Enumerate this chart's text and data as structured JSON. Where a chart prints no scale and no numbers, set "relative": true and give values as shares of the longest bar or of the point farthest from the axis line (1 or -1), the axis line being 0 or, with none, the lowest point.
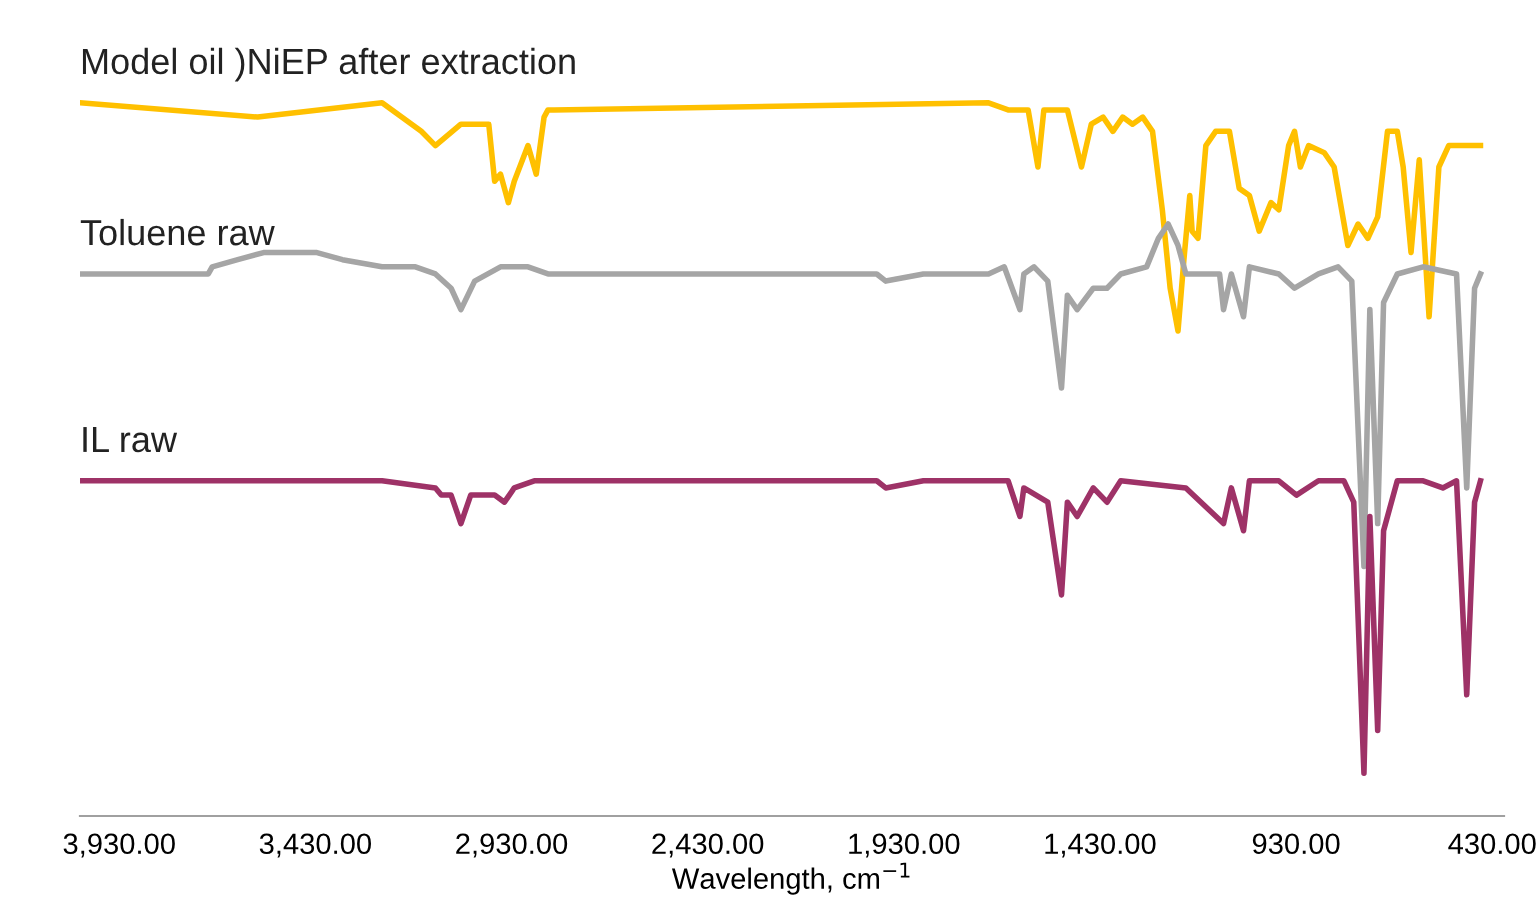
{
  "chart_data": {
    "type": "line",
    "relative": true,
    "xlabel": "Wavelength, cm$^{−1}$",
    "tick_labels": "x",
    "grid": false,
    "legend": false,
    "marker": "none",
    "line_style": "solid",
    "xlim": [
      4030,
      400
    ],
    "xticks": [
      {
        "value": 3930,
        "label": "3,930.00"
      },
      {
        "value": 3430,
        "label": "3,430.00"
      },
      {
        "value": 2930,
        "label": "2,930.00"
      },
      {
        "value": 2430,
        "label": "2,430.00"
      },
      {
        "value": 1930,
        "label": "1,930.00"
      },
      {
        "value": 1430,
        "label": "1,430.00"
      },
      {
        "value": 930,
        "label": "930.00"
      },
      {
        "value": 430,
        "label": "430.00"
      }
    ],
    "series": [
      {
        "name": "Model oil )NiEP after extraction",
        "color": "#ffc000",
        "x": [
          4030,
          3577,
          3260,
          3160,
          3124,
          3059,
          2988,
          2973,
          2958,
          2938,
          2923,
          2888,
          2867,
          2847,
          2837,
          2822,
          1714,
          1664,
          1613,
          1588,
          1573,
          1513,
          1477,
          1452,
          1422,
          1397,
          1372,
          1347,
          1321,
          1296,
          1271,
          1251,
          1231,
          1216,
          1201,
          1195,
          1180,
          1160,
          1135,
          1100,
          1075,
          1049,
          1024,
          994,
          974,
          949,
          934,
          919,
          898,
          858,
          833,
          798,
          772,
          747,
          722,
          697,
          672,
          657,
          637,
          616,
          591,
          566,
          541,
          506,
          460
        ],
        "values": [
          1.0,
          0.98,
          1.0,
          0.96,
          0.94,
          0.97,
          0.97,
          0.89,
          0.9,
          0.86,
          0.89,
          0.94,
          0.9,
          0.98,
          0.99,
          0.99,
          1.0,
          0.99,
          0.99,
          0.91,
          0.99,
          0.99,
          0.91,
          0.97,
          0.98,
          0.96,
          0.98,
          0.97,
          0.98,
          0.96,
          0.85,
          0.74,
          0.68,
          0.78,
          0.87,
          0.82,
          0.81,
          0.94,
          0.96,
          0.96,
          0.88,
          0.87,
          0.82,
          0.86,
          0.85,
          0.94,
          0.96,
          0.91,
          0.94,
          0.93,
          0.91,
          0.8,
          0.83,
          0.81,
          0.84,
          0.96,
          0.96,
          0.91,
          0.79,
          0.92,
          0.7,
          0.91,
          0.94,
          0.94,
          0.94
        ]
      },
      {
        "name": "Toluene raw",
        "color": "#a5a5a5",
        "x": [
          4030,
          3703,
          3693,
          3628,
          3562,
          3492,
          3426,
          3361,
          3260,
          3175,
          3124,
          3084,
          3059,
          3024,
          2958,
          2888,
          2837,
          1999,
          1976,
          1880,
          1830,
          1714,
          1674,
          1634,
          1624,
          1598,
          1563,
          1528,
          1513,
          1488,
          1447,
          1412,
          1377,
          1311,
          1281,
          1256,
          1231,
          1211,
          1160,
          1125,
          1115,
          1095,
          1064,
          1049,
          974,
          934,
          873,
          823,
          788,
          757,
          742,
          722,
          707,
          672,
          606,
          521,
          495,
          475,
          460
        ],
        "values": [
          0.76,
          0.76,
          0.77,
          0.78,
          0.79,
          0.79,
          0.79,
          0.78,
          0.77,
          0.77,
          0.76,
          0.74,
          0.71,
          0.75,
          0.77,
          0.77,
          0.76,
          0.76,
          0.75,
          0.76,
          0.76,
          0.76,
          0.77,
          0.71,
          0.76,
          0.77,
          0.75,
          0.6,
          0.73,
          0.71,
          0.74,
          0.74,
          0.76,
          0.77,
          0.81,
          0.83,
          0.8,
          0.76,
          0.76,
          0.76,
          0.71,
          0.76,
          0.7,
          0.77,
          0.76,
          0.74,
          0.76,
          0.77,
          0.75,
          0.35,
          0.71,
          0.41,
          0.72,
          0.76,
          0.77,
          0.76,
          0.46,
          0.74,
          0.76
        ]
      },
      {
        "name": "IL raw",
        "color": "#9e3267",
        "x": [
          4030,
          3260,
          3124,
          3109,
          3084,
          3059,
          3034,
          2973,
          2948,
          2923,
          2872,
          2822,
          2762,
          1999,
          1976,
          1880,
          1830,
          1714,
          1664,
          1634,
          1624,
          1563,
          1528,
          1513,
          1488,
          1447,
          1412,
          1377,
          1211,
          1115,
          1095,
          1064,
          1049,
          974,
          929,
          873,
          808,
          783,
          757,
          742,
          722,
          707,
          672,
          606,
          556,
          521,
          495,
          475,
          460
        ],
        "values": [
          0.47,
          0.47,
          0.46,
          0.45,
          0.45,
          0.41,
          0.45,
          0.45,
          0.44,
          0.46,
          0.47,
          0.47,
          0.47,
          0.47,
          0.46,
          0.47,
          0.47,
          0.47,
          0.47,
          0.42,
          0.46,
          0.44,
          0.31,
          0.44,
          0.42,
          0.46,
          0.44,
          0.47,
          0.46,
          0.41,
          0.46,
          0.4,
          0.47,
          0.47,
          0.45,
          0.47,
          0.47,
          0.44,
          0.06,
          0.42,
          0.12,
          0.4,
          0.47,
          0.47,
          0.46,
          0.47,
          0.17,
          0.44,
          0.47
        ]
      }
    ]
  }
}
